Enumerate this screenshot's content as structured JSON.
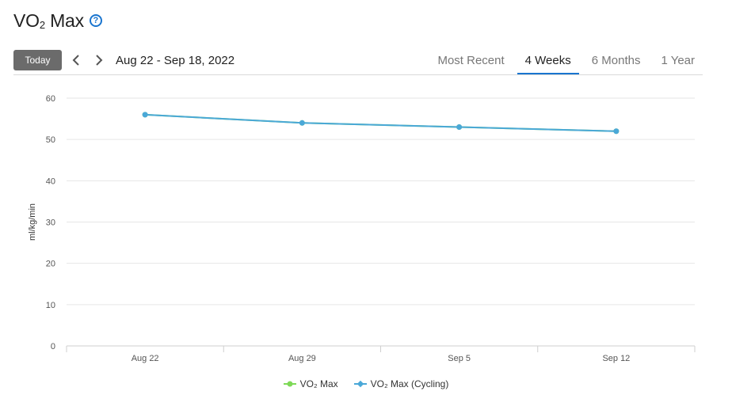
{
  "header": {
    "title_main": "VO",
    "title_sub": "2",
    "title_rest": " Max",
    "help_icon": "question-circle-icon"
  },
  "toolbar": {
    "today_label": "Today",
    "prev_icon": "chevron-left-icon",
    "next_icon": "chevron-right-icon",
    "date_range": "Aug 22 - Sep 18, 2022",
    "tabs": [
      {
        "label": "Most Recent",
        "active": false
      },
      {
        "label": "4 Weeks",
        "active": true
      },
      {
        "label": "6 Months",
        "active": false
      },
      {
        "label": "1 Year",
        "active": false
      }
    ]
  },
  "colors": {
    "accent": "#1a75cf",
    "series_vo2": "#7ed957",
    "series_cycling": "#4aa8d8",
    "grid": "#e6e6e6"
  },
  "chart_data": {
    "type": "line",
    "categories": [
      "Aug 22",
      "Aug 29",
      "Sep 5",
      "Sep 12"
    ],
    "ylabel": "ml/kg/min",
    "xlabel": "",
    "ylim": [
      0,
      60
    ],
    "yticks": [
      0,
      10,
      20,
      30,
      40,
      50,
      60
    ],
    "grid": true,
    "legend": "bottom",
    "series": [
      {
        "name": "VO₂ Max",
        "values": [
          56,
          54,
          53,
          52
        ],
        "color": "#7ed957"
      },
      {
        "name": "VO₂ Max (Cycling)",
        "values": [
          56,
          54,
          53,
          52
        ],
        "color": "#4aa8d8"
      }
    ]
  }
}
